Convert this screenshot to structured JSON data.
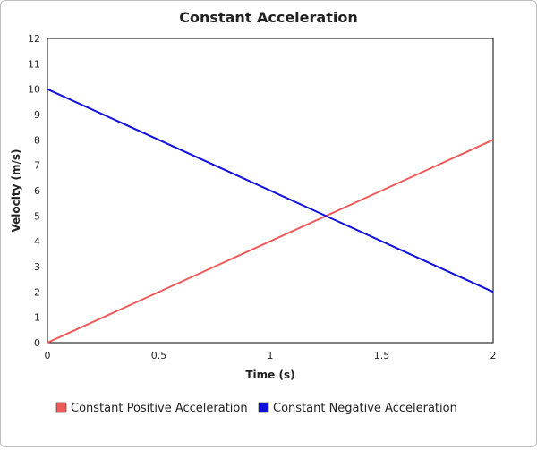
{
  "chart_data": {
    "type": "line",
    "title": "Constant Acceleration",
    "xlabel": "Time (s)",
    "ylabel": "Velocity (m/s)",
    "xlim": [
      0,
      2
    ],
    "ylim": [
      0,
      12
    ],
    "x_ticks": [
      0,
      0.5,
      1,
      1.5,
      2
    ],
    "y_ticks": [
      0,
      1,
      2,
      3,
      4,
      5,
      6,
      7,
      8,
      9,
      10,
      11,
      12
    ],
    "grid": false,
    "legend_position": "bottom",
    "series": [
      {
        "name": "Constant Positive Acceleration",
        "color": "#ef5b5b",
        "x": [
          0,
          2
        ],
        "y": [
          0,
          8
        ]
      },
      {
        "name": "Constant Negative Acceleration",
        "color": "#1010dd",
        "x": [
          0,
          2
        ],
        "y": [
          10,
          2
        ]
      }
    ]
  }
}
